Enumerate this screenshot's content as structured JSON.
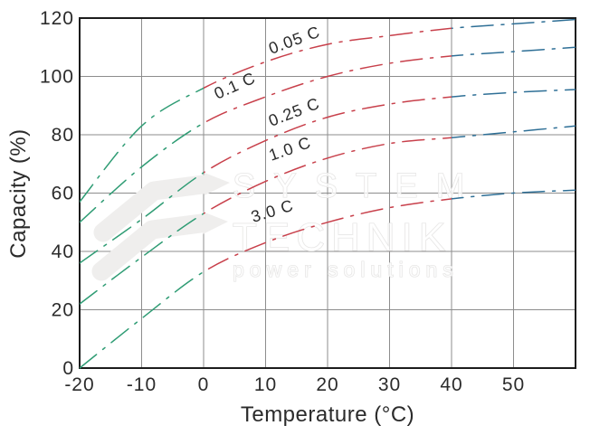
{
  "figure": {
    "watermark": {
      "line1": "SYSTEM",
      "line2": "TECHNIK",
      "line3": "power solutions"
    }
  },
  "chart_data": {
    "type": "line",
    "title": "",
    "xlabel": "Temperature (°C)",
    "ylabel": "Capacity (%)",
    "xlim": [
      -20,
      60
    ],
    "ylim": [
      0,
      120
    ],
    "x_ticks": [
      -20,
      -10,
      0,
      10,
      20,
      30,
      40,
      50
    ],
    "y_ticks": [
      0,
      20,
      40,
      60,
      80,
      100,
      120
    ],
    "grid": true,
    "line_style": "dash-dot",
    "legend_position": "inline-labels",
    "x": [
      -20,
      -10,
      0,
      10,
      20,
      30,
      40,
      50,
      60
    ],
    "series": [
      {
        "name": "0.05 C",
        "values": [
          57,
          83,
          96,
          105,
          111,
          114,
          116.5,
          118,
          119.5
        ],
        "label": {
          "x": 10.9,
          "y": 107.6,
          "angle": -20
        }
      },
      {
        "name": "0.1 C",
        "values": [
          50,
          69,
          84,
          93,
          100,
          104.5,
          107,
          108.5,
          110
        ],
        "label": {
          "x": 2.2,
          "y": 92.1,
          "angle": -24
        }
      },
      {
        "name": "0.25 C",
        "values": [
          36,
          51,
          67,
          78,
          86,
          90.5,
          93,
          94.5,
          95.5
        ],
        "label": {
          "x": 10.9,
          "y": 82.8,
          "angle": -21
        }
      },
      {
        "name": "1.0 C",
        "values": [
          22,
          38,
          53,
          64,
          72,
          77,
          79,
          81,
          83
        ],
        "label": {
          "x": 10.9,
          "y": 71.0,
          "angle": -19
        }
      },
      {
        "name": "3.0 C",
        "values": [
          0,
          17,
          33,
          43,
          50,
          55,
          58,
          60,
          61
        ],
        "label": {
          "x": 8.0,
          "y": 49.9,
          "angle": -17
        }
      }
    ],
    "segment_colors": [
      {
        "name": "cold-below-0C",
        "range": [
          -20,
          0
        ],
        "color": "#2F9C74"
      },
      {
        "name": "moderate-0-40C",
        "range": [
          0,
          40
        ],
        "color": "#C8404B"
      },
      {
        "name": "hot-above-40C",
        "range": [
          40,
          60
        ],
        "color": "#2E6F96"
      }
    ]
  }
}
